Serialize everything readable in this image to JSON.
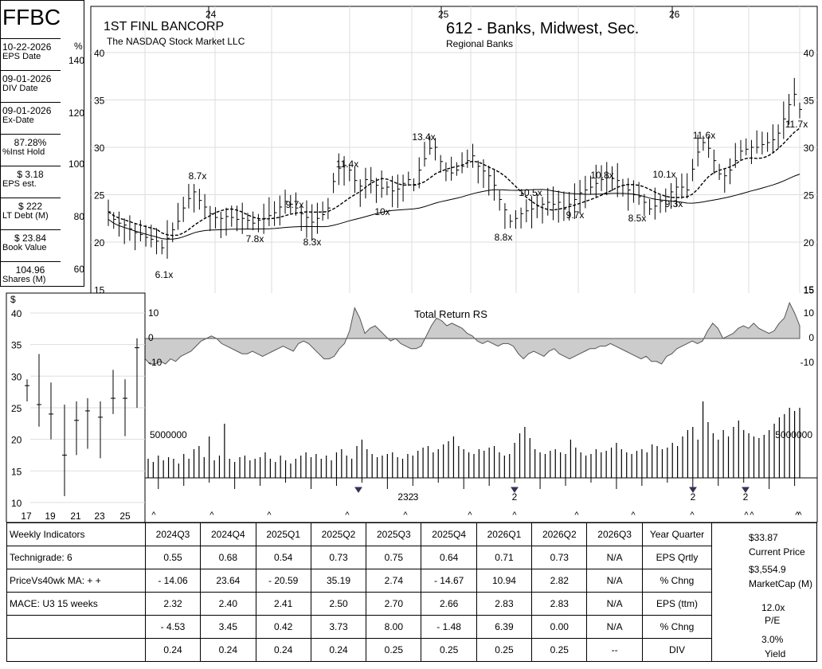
{
  "symbol": "FFBC",
  "company": "1ST FINL BANCORP",
  "exchange": "The NASDAQ Stock Market LLC",
  "industry": "612 - Banks, Midwest, Sec.",
  "sector": "Regional Banks",
  "left_panel": [
    {
      "value": "10-22-2026",
      "caption": "EPS Date"
    },
    {
      "value": "09-01-2026",
      "caption": "DIV Date"
    },
    {
      "value": "09-01-2026",
      "caption": "Ex-Date"
    },
    {
      "value": "87.28%",
      "caption": "%Inst Hold"
    },
    {
      "value": "$ 3.18",
      "caption": "EPS est."
    },
    {
      "value": "$ 222",
      "caption": "LT Debt (M)"
    },
    {
      "value": "$ 23.84",
      "caption": "Book Value"
    },
    {
      "value": "104.96",
      "caption": "Shares (M)"
    }
  ],
  "chart_data": [
    {
      "type": "line",
      "name": "price-chart",
      "year_labels": [
        "24",
        "25",
        "26"
      ],
      "pct_axis_label": "%",
      "pct_ticks": [
        "140",
        "120",
        "100",
        "80",
        "60"
      ],
      "price_ticks": [
        40,
        35,
        30,
        25,
        20,
        15
      ],
      "ylim": [
        15,
        40
      ],
      "weekly_close": [
        23.2,
        22.4,
        22.0,
        21.8,
        21.4,
        21.0,
        20.8,
        20.5,
        20.3,
        20.1,
        19.4,
        20.4,
        21.3,
        22.2,
        23.6,
        24.6,
        25.3,
        24.4,
        23.7,
        23.0,
        22.6,
        22.5,
        22.7,
        22.6,
        22.4,
        22.5,
        22.3,
        22.0,
        22.3,
        22.5,
        22.8,
        23.1,
        23.7,
        24.3,
        24.0,
        23.6,
        23.0,
        22.6,
        22.1,
        22.5,
        22.9,
        23.6,
        26.4,
        27.8,
        28.1,
        27.6,
        26.5,
        25.9,
        26.6,
        26.5,
        26.0,
        25.7,
        25.8,
        25.4,
        25.6,
        26.2,
        26.6,
        26.0,
        27.6,
        28.8,
        29.9,
        30.0,
        28.5,
        27.5,
        27.3,
        27.6,
        28.0,
        28.6,
        29.1,
        28.0,
        27.5,
        27.0,
        26.0,
        24.5,
        23.4,
        22.2,
        22.5,
        23.0,
        23.3,
        23.5,
        23.8,
        24.0,
        24.2,
        24.0,
        24.2,
        23.5,
        24.0,
        24.5,
        25.2,
        25.5,
        25.8,
        26.2,
        26.6,
        26.8,
        26.7,
        26.5,
        26.0,
        25.5,
        25.0,
        24.8,
        24.2,
        23.5,
        23.8,
        24.3,
        24.8,
        25.3,
        25.8,
        25.8,
        25.5,
        27.7,
        29.5,
        30.5,
        29.9,
        28.6,
        27.2,
        27.0,
        27.6,
        28.6,
        29.6,
        29.8,
        30.0,
        30.0,
        30.3,
        30.5,
        30.8,
        31.5,
        33.0,
        34.5,
        35.6,
        34.0
      ],
      "ma10_start": 23.2,
      "pe_labels": [
        "6.1x",
        "8.7x",
        "7.8x",
        "9.7x",
        "8.3x",
        "11.4x",
        "10x",
        "13.4x",
        "8.8x",
        "10.5x",
        "9.7x",
        "10.8x",
        "8.5x",
        "10.1x",
        "9.3x",
        "11.6x",
        "11.7x"
      ],
      "rs_label": "Total Return RS",
      "rs_ticks": [
        "10",
        "0",
        "-10"
      ],
      "rs_values": [
        -8,
        -10,
        -10,
        -9,
        -10,
        -8,
        -9,
        -7,
        -6,
        -5,
        -3,
        -1,
        0,
        1,
        0,
        -2,
        -3,
        -4,
        -5,
        -6,
        -6,
        -5,
        -6,
        -7,
        -6,
        -5,
        -4,
        -3,
        -4,
        -5,
        -2,
        -1,
        -2,
        -4,
        -6,
        -8,
        -8,
        -7,
        -4,
        -2,
        3,
        12,
        8,
        2,
        4,
        5,
        3,
        1,
        -1,
        0,
        -2,
        -3,
        -4,
        -4,
        -3,
        1,
        5,
        8,
        7,
        5,
        6,
        5,
        4,
        2,
        1,
        -1,
        -2,
        -1,
        -2,
        -3,
        -2,
        -2,
        -3,
        -6,
        -8,
        -6,
        -5,
        -6,
        -7,
        -5,
        -4,
        -6,
        -7,
        -8,
        -7,
        -6,
        -5,
        -4,
        -4,
        -3,
        -3,
        -2,
        -3,
        -4,
        -5,
        -6,
        -7,
        -8,
        -7,
        -9,
        -9,
        -10,
        -7,
        -6,
        -4,
        -3,
        -2,
        -1,
        -2,
        -1,
        3,
        6,
        4,
        0,
        1,
        2,
        4,
        5,
        4,
        6,
        4,
        3,
        2,
        3,
        6,
        8,
        14,
        10,
        5
      ],
      "volume_label": "5000000",
      "volume_label_right": "5000000",
      "volume": [
        1.2,
        1.0,
        1.4,
        1.1,
        1.3,
        1.2,
        0.9,
        1.5,
        1.2,
        1.8,
        2.0,
        1.3,
        2.6,
        1.1,
        1.4,
        3.4,
        1.2,
        1.0,
        1.3,
        1.4,
        1.1,
        1.2,
        1.3,
        1.6,
        1.2,
        1.0,
        1.4,
        1.1,
        0.9,
        1.2,
        1.4,
        1.6,
        1.3,
        1.5,
        1.2,
        1.4,
        1.1,
        1.6,
        1.8,
        1.4,
        1.2,
        2.0,
        2.4,
        1.8,
        1.5,
        1.3,
        1.4,
        1.5,
        1.6,
        1.3,
        1.2,
        1.5,
        1.4,
        1.7,
        1.9,
        2.0,
        1.6,
        1.8,
        2.1,
        2.3,
        2.6,
        2.0,
        1.8,
        1.6,
        1.5,
        1.8,
        1.7,
        1.9,
        2.0,
        1.6,
        1.4,
        1.5,
        2.2,
        2.8,
        3.2,
        2.5,
        1.8,
        1.6,
        1.5,
        1.7,
        1.8,
        1.6,
        1.5,
        2.4,
        1.9,
        1.6,
        1.4,
        1.5,
        1.8,
        1.6,
        1.7,
        1.9,
        2.2,
        1.8,
        1.6,
        1.5,
        1.7,
        1.8,
        1.6,
        2.1,
        2.0,
        1.8,
        1.9,
        2.2,
        2.0,
        2.6,
        3.0,
        3.2,
        2.4,
        4.8,
        3.5,
        2.8,
        2.4,
        3.0,
        2.6,
        3.2,
        3.6,
        3.0,
        2.8,
        2.6,
        2.5,
        2.7,
        3.0,
        3.4,
        3.8,
        4.0,
        4.4,
        4.2,
        4.4
      ],
      "volume_down_markers": [
        "23",
        "2",
        "3",
        "2",
        "2",
        "2"
      ],
      "volume_down_weeks": [
        49,
        58,
        59,
        60,
        80,
        119
      ],
      "volume_caret": "^",
      "caret_count": 14
    },
    {
      "type": "line",
      "name": "inset-price-chart",
      "ylabel": "$",
      "yticks": [
        40,
        35,
        30,
        25,
        20,
        15,
        10
      ],
      "ylim": [
        10,
        41
      ],
      "xticks": [
        "17",
        "19",
        "21",
        "23",
        "25"
      ],
      "bars": [
        {
          "x": 16.5,
          "high": 29.5,
          "low": 26.0,
          "close": 28.5
        },
        {
          "x": 17.5,
          "high": 33.5,
          "low": 22.0,
          "close": 25.5
        },
        {
          "x": 18.5,
          "high": 29.0,
          "low": 20.0,
          "close": 24.0
        },
        {
          "x": 19.5,
          "high": 25.5,
          "low": 11.0,
          "close": 17.5
        },
        {
          "x": 20.5,
          "high": 26.0,
          "low": 17.5,
          "close": 23.0
        },
        {
          "x": 21.5,
          "high": 26.5,
          "low": 18.5,
          "close": 24.5
        },
        {
          "x": 22.5,
          "high": 26.0,
          "low": 17.0,
          "close": 23.5
        },
        {
          "x": 23.5,
          "high": 31.0,
          "low": 24.0,
          "close": 26.5
        },
        {
          "x": 24.5,
          "high": 29.5,
          "low": 20.5,
          "close": 26.5
        },
        {
          "x": 25.5,
          "high": 36.0,
          "low": 25.0,
          "close": 34.5
        }
      ]
    }
  ],
  "table": {
    "quarters": [
      "2024Q3",
      "2024Q4",
      "2025Q1",
      "2025Q2",
      "2025Q3",
      "2025Q4",
      "2026Q1",
      "2026Q2",
      "2026Q3"
    ],
    "header_left": "Weekly Indicators",
    "header_right": "Year Quarter",
    "rows": [
      {
        "left": "Technigrade: 6",
        "values": [
          "0.55",
          "0.68",
          "0.54",
          "0.73",
          "0.75",
          "0.64",
          "0.71",
          "0.73",
          "N/A"
        ],
        "label": "EPS Qrtly"
      },
      {
        "left": "PriceVs40wk MA:  + +",
        "values": [
          "- 14.06",
          "23.64",
          "- 20.59",
          "35.19",
          "2.74",
          "- 14.67",
          "10.94",
          "2.82",
          "N/A"
        ],
        "label": "% Chng"
      },
      {
        "left": "MACE: U3   15 weeks",
        "values": [
          "2.32",
          "2.40",
          "2.41",
          "2.50",
          "2.70",
          "2.66",
          "2.83",
          "2.83",
          "N/A"
        ],
        "label": "EPS (ttm)"
      },
      {
        "left": "",
        "values": [
          "- 4.53",
          "3.45",
          "0.42",
          "3.73",
          "8.00",
          "- 1.48",
          "6.39",
          "0.00",
          "N/A"
        ],
        "label": "% Chng"
      },
      {
        "left": "",
        "values": [
          "0.24",
          "0.24",
          "0.24",
          "0.24",
          "0.25",
          "0.25",
          "0.25",
          "0.25",
          "--"
        ],
        "label": "DIV"
      }
    ],
    "right": {
      "current_price": "$33.87",
      "current_price_label": "Current Price",
      "market_cap": "$3,554.9",
      "market_cap_label": "MarketCap (M)",
      "pe": "12.0x",
      "pe_label": "P/E",
      "yield": "3.0%",
      "yield_label": "Yield"
    }
  }
}
